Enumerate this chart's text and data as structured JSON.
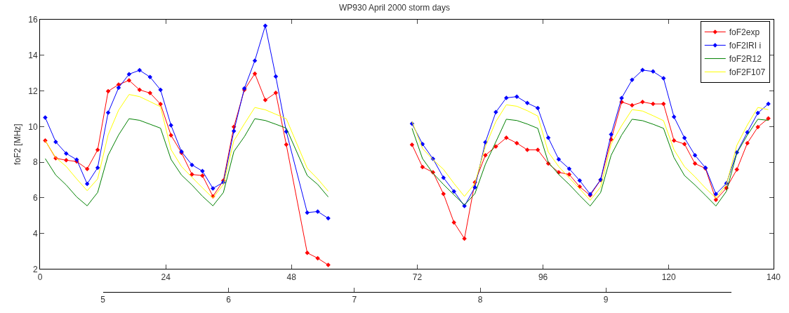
{
  "chart_data": {
    "type": "line",
    "title": "WP930 April 2000 storm days",
    "ylabel": "foF2 [MHz]",
    "x": [
      1,
      3,
      5,
      7,
      9,
      11,
      13,
      15,
      17,
      19,
      21,
      23,
      25,
      27,
      29,
      31,
      33,
      35,
      37,
      39,
      41,
      43,
      45,
      47,
      51,
      53,
      55,
      63,
      71,
      73,
      75,
      77,
      79,
      81,
      83,
      85,
      87,
      89,
      91,
      93,
      95,
      97,
      99,
      101,
      103,
      105,
      107,
      109,
      111,
      113,
      115,
      117,
      119,
      121,
      123,
      125,
      127,
      129,
      131,
      133,
      135,
      137,
      139
    ],
    "series": [
      {
        "name": "foF2exp",
        "color": "#ff0000",
        "marker": "diamond",
        "values": [
          9.21,
          8.22,
          8.11,
          8.04,
          7.62,
          8.69,
          11.98,
          12.36,
          12.59,
          12.06,
          11.88,
          11.26,
          9.51,
          8.53,
          7.31,
          7.25,
          6.08,
          6.97,
          9.98,
          12.06,
          12.97,
          11.49,
          11.89,
          8.99,
          2.91,
          2.61,
          2.23,
          null,
          8.98,
          7.73,
          7.43,
          6.22,
          4.62,
          3.71,
          6.87,
          8.39,
          8.88,
          9.37,
          9.07,
          8.69,
          8.69,
          7.92,
          7.43,
          7.31,
          6.62,
          6.14,
          7.0,
          9.27,
          11.38,
          11.19,
          11.38,
          11.27,
          11.27,
          9.21,
          9.02,
          7.92,
          7.65,
          5.89,
          6.55,
          7.59,
          9.07,
          9.97,
          10.46
        ]
      },
      {
        "name": "foF2IRI i",
        "color": "#0000ff",
        "marker": "diamond",
        "values": [
          10.5,
          9.14,
          8.49,
          8.14,
          6.78,
          7.69,
          10.78,
          12.18,
          12.94,
          13.16,
          12.78,
          12.06,
          10.07,
          8.59,
          7.85,
          7.5,
          6.53,
          6.87,
          9.75,
          12.14,
          13.7,
          15.66,
          12.81,
          9.72,
          5.17,
          5.23,
          4.85,
          null,
          10.16,
          9.02,
          8.19,
          7.13,
          6.36,
          5.54,
          6.59,
          9.12,
          10.81,
          11.61,
          11.68,
          11.32,
          11.04,
          9.37,
          8.16,
          7.63,
          6.97,
          6.2,
          7.02,
          9.56,
          11.6,
          12.62,
          13.17,
          13.09,
          12.71,
          10.54,
          9.36,
          8.39,
          7.69,
          6.21,
          6.81,
          8.55,
          9.68,
          10.76,
          11.27
        ]
      },
      {
        "name": "foF2R12",
        "color": "#008000",
        "marker": "none",
        "values": [
          8.2,
          7.28,
          6.72,
          6.05,
          5.55,
          6.3,
          8.39,
          9.53,
          10.44,
          10.35,
          10.13,
          9.91,
          8.16,
          7.28,
          6.72,
          6.09,
          5.55,
          6.3,
          8.6,
          9.43,
          10.44,
          10.34,
          10.13,
          9.91,
          7.25,
          6.75,
          6.05,
          null,
          9.9,
          8.2,
          7.38,
          6.75,
          6.17,
          5.6,
          6.23,
          7.88,
          9.14,
          10.41,
          10.34,
          10.14,
          9.9,
          8.0,
          7.31,
          6.75,
          6.13,
          5.54,
          6.3,
          8.39,
          9.52,
          10.41,
          10.33,
          10.13,
          9.9,
          8.26,
          7.25,
          6.72,
          6.14,
          5.54,
          6.36,
          8.51,
          9.52,
          10.41,
          10.35
        ]
      },
      {
        "name": "foF2F107",
        "color": "#ffff00",
        "marker": "none",
        "values": [
          9.21,
          8.26,
          7.76,
          7.06,
          6.4,
          7.06,
          9.53,
          10.92,
          11.8,
          11.68,
          11.4,
          11.11,
          8.71,
          7.76,
          7.15,
          6.56,
          5.99,
          6.75,
          9.2,
          10.15,
          11.07,
          10.94,
          10.69,
          10.44,
          7.66,
          7.06,
          6.37,
          null,
          10.28,
          8.77,
          8.14,
          7.6,
          6.81,
          6.08,
          6.81,
          8.89,
          10.28,
          11.22,
          11.14,
          10.89,
          10.59,
          8.57,
          7.75,
          7.12,
          6.51,
          5.86,
          6.61,
          9.02,
          10.05,
          10.95,
          10.87,
          10.61,
          10.33,
          8.7,
          7.75,
          7.18,
          6.55,
          5.98,
          6.74,
          8.95,
          10.09,
          11.07,
          10.95
        ]
      }
    ],
    "xlim": [
      0,
      140
    ],
    "xticks": [
      0,
      24,
      48,
      72,
      96,
      120,
      140
    ],
    "x2lim": [
      5,
      10
    ],
    "x2ticks": [
      5,
      6,
      7,
      8,
      9
    ],
    "ylim": [
      2,
      16
    ],
    "yticks": [
      2,
      4,
      6,
      8,
      10,
      12,
      14,
      16
    ],
    "grid": false,
    "legend": "top right",
    "line_style": "solid"
  }
}
